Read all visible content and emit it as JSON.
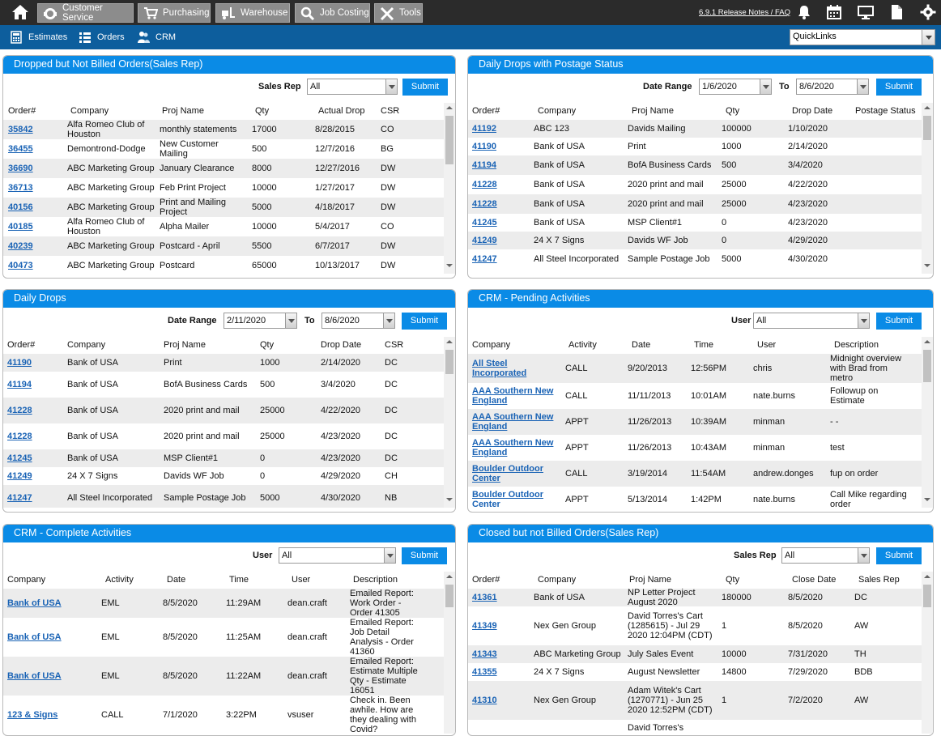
{
  "nav": {
    "items": [
      {
        "label": "Customer Service",
        "icon": "headset-icon"
      },
      {
        "label": "Purchasing",
        "icon": "cart-icon"
      },
      {
        "label": "Warehouse",
        "icon": "forklift-icon"
      },
      {
        "label": "Job Costing",
        "icon": "magnifier-icon"
      },
      {
        "label": "Tools",
        "icon": "tools-icon"
      }
    ],
    "release_link": "6.9.1 Release Notes / FAQ"
  },
  "subnav": {
    "items": [
      {
        "label": "Estimates",
        "icon": "calculator-icon"
      },
      {
        "label": "Orders",
        "icon": "list-icon"
      },
      {
        "label": "CRM",
        "icon": "users-icon"
      }
    ],
    "quicklinks": "QuickLinks"
  },
  "panels": {
    "dropped_not_billed": {
      "title": "Dropped but Not Billed Orders(Sales Rep)",
      "filter_label": "Sales Rep",
      "filter_value": "All",
      "submit": "Submit",
      "columns": [
        "Order#",
        "Company",
        "Proj Name",
        "Qty",
        "Actual Drop",
        "CSR"
      ],
      "rows": [
        [
          "35842",
          "Alfa Romeo Club of Houston",
          "monthly statements",
          "17000",
          "8/28/2015",
          "CO"
        ],
        [
          "36455",
          "Demontrond-Dodge",
          "New Customer Mailing",
          "500",
          "12/7/2016",
          "BG"
        ],
        [
          "36690",
          "ABC Marketing Group",
          "January Clearance",
          "8000",
          "12/27/2016",
          "DW"
        ],
        [
          "36713",
          "ABC Marketing Group",
          "Feb Print Project",
          "10000",
          "1/27/2017",
          "DW"
        ],
        [
          "40156",
          "ABC Marketing Group",
          "Print and Mailing Project",
          "5000",
          "4/18/2017",
          "DW"
        ],
        [
          "40185",
          "Alfa Romeo Club of Houston",
          "Alpha Mailer",
          "10000",
          "5/4/2017",
          "CO"
        ],
        [
          "40239",
          "ABC Marketing Group",
          "Postcard - April",
          "5500",
          "6/7/2017",
          "DW"
        ],
        [
          "40473",
          "ABC Marketing Group",
          "Postcard",
          "65000",
          "10/13/2017",
          "DW"
        ]
      ]
    },
    "daily_drops_postage": {
      "title": "Daily Drops with Postage Status",
      "filter_label": "Date Range",
      "from": "1/6/2020",
      "to_label": "To",
      "to": "8/6/2020",
      "submit": "Submit",
      "columns": [
        "Order#",
        "Company",
        "Proj Name",
        "Qty",
        "Drop Date",
        "Postage Status"
      ],
      "rows": [
        [
          "41192",
          "ABC 123",
          "Davids Mailing",
          "100000",
          "1/10/2020",
          ""
        ],
        [
          "41190",
          "Bank of USA",
          "Print",
          "1000",
          "2/14/2020",
          ""
        ],
        [
          "41194",
          "Bank of USA",
          "BofA Business Cards",
          "500",
          "3/4/2020",
          ""
        ],
        [
          "41228",
          "Bank of USA",
          "2020 print and mail",
          "25000",
          "4/22/2020",
          ""
        ],
        [
          "41228",
          "Bank of USA",
          "2020 print and mail",
          "25000",
          "4/23/2020",
          ""
        ],
        [
          "41245",
          "Bank of USA",
          "MSP Client#1",
          "0",
          "4/23/2020",
          ""
        ],
        [
          "41249",
          "24 X 7 Signs",
          "Davids WF Job",
          "0",
          "4/29/2020",
          ""
        ],
        [
          "41247",
          "All Steel Incorporated",
          "Sample Postage Job",
          "5000",
          "4/30/2020",
          ""
        ]
      ]
    },
    "daily_drops": {
      "title": "Daily Drops",
      "filter_label": "Date Range",
      "from": "2/11/2020",
      "to_label": "To",
      "to": "8/6/2020",
      "submit": "Submit",
      "columns": [
        "Order#",
        "Company",
        "Proj Name",
        "Qty",
        "Drop Date",
        "CSR"
      ],
      "rows": [
        [
          "41190",
          "Bank of USA",
          "Print",
          "1000",
          "2/14/2020",
          "DC"
        ],
        [
          "41194",
          "Bank of USA",
          "BofA Business Cards",
          "500",
          "3/4/2020",
          "DC"
        ],
        [
          "41228",
          "Bank of USA",
          "2020 print and mail",
          "25000",
          "4/22/2020",
          "DC"
        ],
        [
          "41228",
          "Bank of USA",
          "2020 print and mail",
          "25000",
          "4/23/2020",
          "DC"
        ],
        [
          "41245",
          "Bank of USA",
          "MSP Client#1",
          "0",
          "4/23/2020",
          "DC"
        ],
        [
          "41249",
          "24 X 7 Signs",
          "Davids WF Job",
          "0",
          "4/29/2020",
          "CH"
        ],
        [
          "41247",
          "All Steel Incorporated",
          "Sample Postage Job",
          "5000",
          "4/30/2020",
          "NB"
        ]
      ]
    },
    "crm_pending": {
      "title": "CRM - Pending Activities",
      "filter_label": "User",
      "filter_value": "All",
      "submit": "Submit",
      "columns": [
        "Company",
        "Activity",
        "Date",
        "Time",
        "User",
        "Description"
      ],
      "rows": [
        [
          "All Steel Incorporated",
          "CALL",
          "9/20/2013",
          "12:56PM",
          "chris",
          "Midnight overview with Brad from metro"
        ],
        [
          "AAA Southern New England",
          "CALL",
          "11/11/2013",
          "10:01AM",
          "nate.burns",
          "Followup on Estimate"
        ],
        [
          "AAA Southern New England",
          "APPT",
          "11/26/2013",
          "10:39AM",
          "minman",
          "- -"
        ],
        [
          "AAA Southern New England",
          "APPT",
          "11/26/2013",
          "10:43AM",
          "minman",
          "test"
        ],
        [
          "Boulder Outdoor Center",
          "CALL",
          "3/19/2014",
          "11:54AM",
          "andrew.donges",
          "fup on order"
        ],
        [
          "Boulder Outdoor Center",
          "APPT",
          "5/13/2014",
          "1:42PM",
          "nate.burns",
          "Call Mike regarding order"
        ]
      ]
    },
    "crm_complete": {
      "title": "CRM - Complete Activities",
      "filter_label": "User",
      "filter_value": "All",
      "submit": "Submit",
      "columns": [
        "Company",
        "Activity",
        "Date",
        "Time",
        "User",
        "Description"
      ],
      "rows": [
        [
          "Bank of USA",
          "EML",
          "8/5/2020",
          "11:29AM",
          "dean.craft",
          "Emailed Report: Work Order - Order 41305"
        ],
        [
          "Bank of USA",
          "EML",
          "8/5/2020",
          "11:25AM",
          "dean.craft",
          "Emailed Report: Job Detail Analysis - Order 41360"
        ],
        [
          "Bank of USA",
          "EML",
          "8/5/2020",
          "11:22AM",
          "dean.craft",
          "Emailed Report: Estimate Multiple Qty - Estimate 16051"
        ],
        [
          "123 & Signs",
          "CALL",
          "7/1/2020",
          "3:22PM",
          "vsuser",
          "Check in. Been awhile. How are they dealing with Covid?"
        ]
      ]
    },
    "closed_not_billed": {
      "title": "Closed but not Billed Orders(Sales Rep)",
      "filter_label": "Sales Rep",
      "filter_value": "All",
      "submit": "Submit",
      "columns": [
        "Order#",
        "Company",
        "Proj Name",
        "Qty",
        "Close Date",
        "Sales Rep"
      ],
      "rows": [
        [
          "41361",
          "Bank of USA",
          "NP Letter Project August 2020",
          "180000",
          "8/5/2020",
          "DC"
        ],
        [
          "41349",
          "Nex Gen Group",
          "David Torres's Cart (1285615) - Jul 29 2020 12:04PM (CDT)",
          "1",
          "8/5/2020",
          "AW"
        ],
        [
          "41343",
          "ABC Marketing Group",
          "July Sales Event",
          "10000",
          "7/31/2020",
          "TH"
        ],
        [
          "41355",
          "24 X 7 Signs",
          "August Newsletter",
          "14800",
          "7/29/2020",
          "BDB"
        ],
        [
          "41310",
          "Nex Gen Group",
          "Adam Witek's Cart (1270771) - Jun 25 2020 12:52PM (CDT)",
          "1",
          "7/2/2020",
          "AW"
        ],
        [
          "",
          "",
          "David Torres's",
          "",
          "",
          ""
        ]
      ]
    }
  }
}
